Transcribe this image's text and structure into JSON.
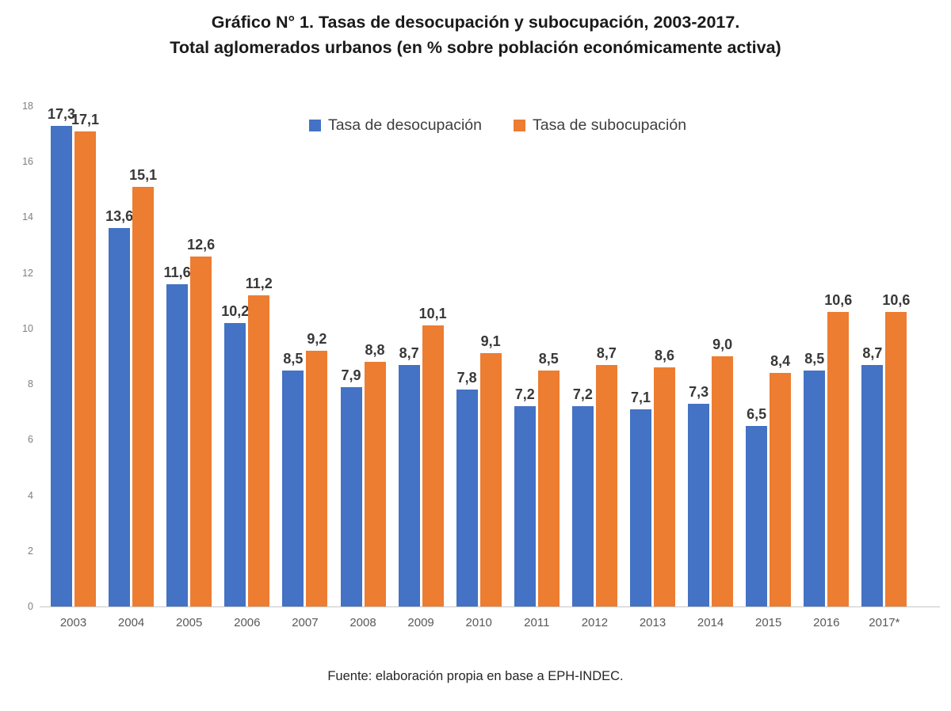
{
  "title": {
    "line1": "Gráfico N° 1. Tasas de desocupación y subocupación, 2003-2017.",
    "line2": "Total aglomerados urbanos (en % sobre población económicamente activa)"
  },
  "footer": {
    "source": "Fuente: elaboración propia en base a EPH-INDEC."
  },
  "colors": {
    "desocupacion": "#4472C4",
    "subocupacion": "#ED7D31",
    "axis_text": "#7f7f7f",
    "data_label_text": "#383838"
  },
  "chart_data": {
    "type": "bar",
    "categories": [
      "2003",
      "2004",
      "2005",
      "2006",
      "2007",
      "2008",
      "2009",
      "2010",
      "2011",
      "2012",
      "2013",
      "2014",
      "2015",
      "2016",
      "2017*"
    ],
    "series": [
      {
        "name": "Tasa de desocupación",
        "color": "#4472C4",
        "values": [
          17.3,
          13.6,
          11.6,
          10.2,
          8.5,
          7.9,
          8.7,
          7.8,
          7.2,
          7.2,
          7.1,
          7.3,
          6.5,
          8.5,
          8.7
        ]
      },
      {
        "name": "Tasa de subocupación",
        "color": "#ED7D31",
        "values": [
          17.1,
          15.1,
          12.6,
          11.2,
          9.2,
          8.8,
          10.1,
          9.1,
          8.5,
          8.7,
          8.6,
          9.0,
          8.4,
          10.6,
          10.6
        ]
      }
    ],
    "title": "Gráfico N° 1. Tasas de desocupación y subocupación, 2003-2017. Total aglomerados urbanos (en % sobre población económicamente activa)",
    "xlabel": "",
    "ylabel": "",
    "ylim": [
      0,
      18
    ],
    "yticks": [
      0,
      2,
      4,
      6,
      8,
      10,
      12,
      14,
      16,
      18
    ],
    "grid": false,
    "legend_position": "top-center",
    "data_labels": "outside-end, decimal comma, one decimal"
  }
}
